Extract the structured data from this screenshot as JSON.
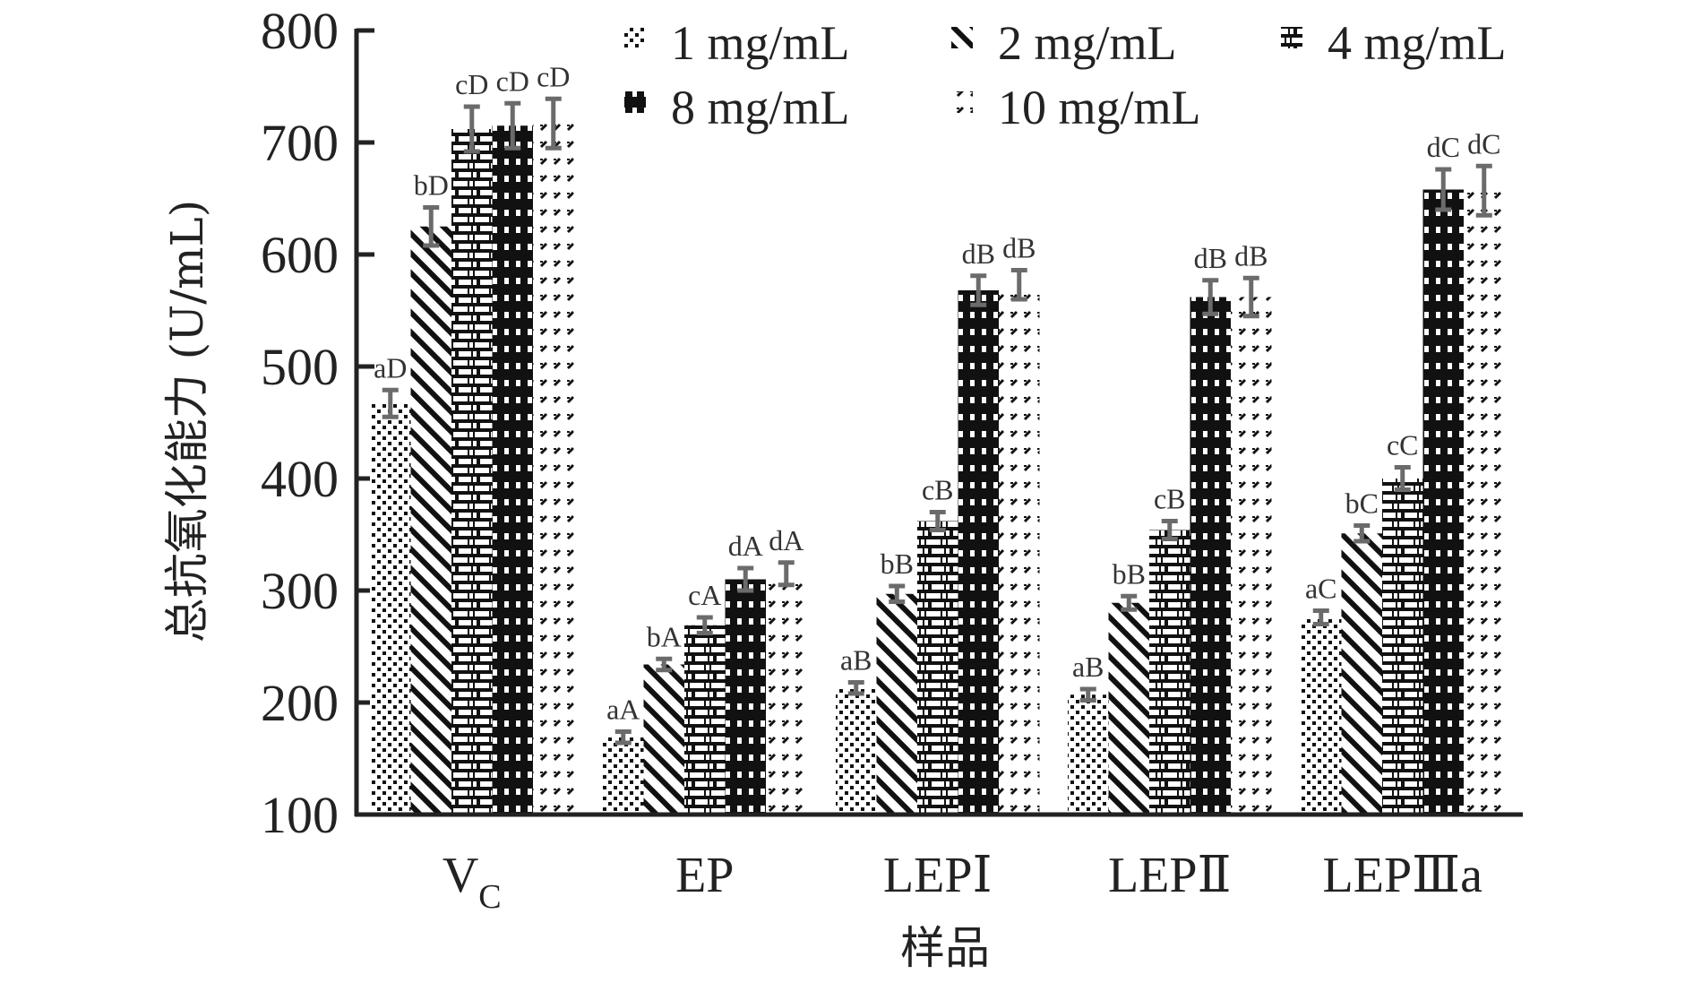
{
  "chart_data": {
    "type": "bar",
    "title": "",
    "xlabel": "样品",
    "ylabel": "总抗氧化能力 (U/mL)",
    "ylim": [
      100,
      800
    ],
    "yticks": [
      100,
      200,
      300,
      400,
      500,
      600,
      700,
      800
    ],
    "ytick_labels": [
      "100",
      "200",
      "300",
      "400",
      "500",
      "600",
      "700",
      "800"
    ],
    "grid": false,
    "legend_position": "top-right",
    "categories": [
      {
        "main": "V",
        "sub": "C"
      },
      {
        "main": "EP",
        "sub": ""
      },
      {
        "main": "LEPⅠ",
        "sub": ""
      },
      {
        "main": "LEPⅡ",
        "sub": ""
      },
      {
        "main": "LEPⅢa",
        "sub": ""
      }
    ],
    "series": [
      {
        "name": "1 mg/mL",
        "pattern": "dots",
        "values": [
          467,
          169,
          213,
          207,
          276
        ],
        "errors": [
          12,
          5,
          5,
          5,
          6
        ],
        "labels": [
          "aD",
          "aA",
          "aB",
          "aB",
          "aC"
        ]
      },
      {
        "name": "2 mg/mL",
        "pattern": "diagonal",
        "values": [
          625,
          234,
          297,
          289,
          351
        ],
        "errors": [
          17,
          5,
          7,
          6,
          7
        ],
        "labels": [
          "bD",
          "bA",
          "bB",
          "bB",
          "bC"
        ]
      },
      {
        "name": "4 mg/mL",
        "pattern": "brick",
        "values": [
          712,
          269,
          362,
          354,
          400
        ],
        "errors": [
          20,
          7,
          8,
          8,
          10
        ],
        "labels": [
          "cD",
          "cA",
          "cB",
          "cB",
          "cC"
        ]
      },
      {
        "name": "8 mg/mL",
        "pattern": "grid",
        "values": [
          715,
          310,
          568,
          562,
          658
        ],
        "errors": [
          20,
          10,
          13,
          15,
          18
        ],
        "labels": [
          "cD",
          "dA",
          "dB",
          "dB",
          "dC"
        ]
      },
      {
        "name": "10 mg/mL",
        "pattern": "dashes",
        "values": [
          717,
          315,
          573,
          562,
          657
        ],
        "errors": [
          22,
          10,
          13,
          17,
          22
        ],
        "labels": [
          "cD",
          "dA",
          "dB",
          "dB",
          "dC"
        ]
      }
    ],
    "colors": {
      "axis": "#222222",
      "error_bar": "#6b6b6b",
      "bar_ink": "#111111"
    }
  }
}
